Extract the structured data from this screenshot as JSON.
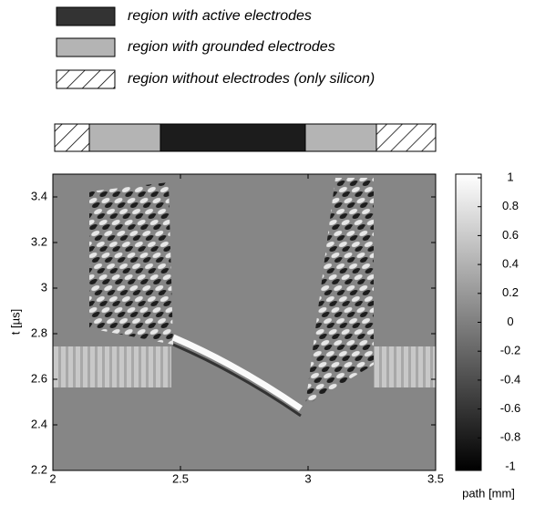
{
  "chart_data": {
    "type": "heatmap",
    "legend": [
      "region with active electrodes",
      "region with grounded electrodes",
      "region without electrodes (only silicon)"
    ],
    "xlabel": "path [mm]",
    "ylabel": "t [µs]",
    "xlim": [
      2,
      3.5
    ],
    "xticks": [
      2,
      2.5,
      3,
      3.5
    ],
    "ylim": [
      2.2,
      3.5
    ],
    "yticks": [
      2.2,
      2.4,
      2.6,
      2.8,
      3,
      3.2,
      3.4
    ],
    "colormap": "gray",
    "colorbar": {
      "lim": [
        -1,
        1
      ],
      "ticks": [
        1,
        0.8,
        0.6,
        0.4,
        0.2,
        0,
        -0.2,
        -0.4,
        -0.6,
        -0.8,
        -1
      ]
    }
  }
}
